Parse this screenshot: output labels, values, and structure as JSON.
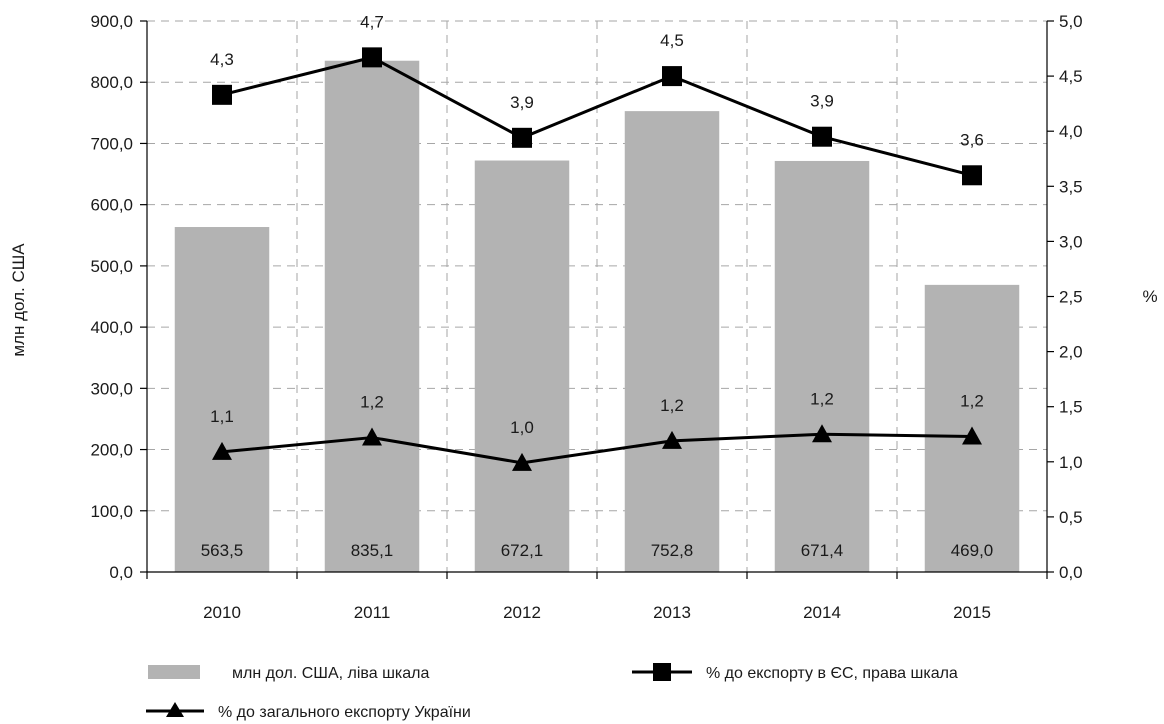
{
  "chart_data": {
    "type": "bar",
    "categories": [
      "2010",
      "2011",
      "2012",
      "2013",
      "2014",
      "2015"
    ],
    "y_left": {
      "label": "млн дол. США",
      "ticks": [
        "0,0",
        "100,0",
        "200,0",
        "300,0",
        "400,0",
        "500,0",
        "600,0",
        "700,0",
        "800,0",
        "900,0"
      ],
      "lim": [
        0,
        900
      ]
    },
    "y_right": {
      "label": "%",
      "ticks": [
        "0,0",
        "0,5",
        "1,0",
        "1,5",
        "2,0",
        "2,5",
        "3,0",
        "3,5",
        "4,0",
        "4,5",
        "5,0"
      ],
      "lim": [
        0,
        5
      ]
    },
    "grid": "dashed",
    "legend_position": "bottom",
    "series": [
      {
        "name": "млн дол. США, ліва шкала",
        "kind": "bar",
        "axis": "left",
        "color": "#b3b3b3",
        "values": [
          563.5,
          835.1,
          672.1,
          752.8,
          671.4,
          469.0
        ],
        "labels": [
          "563,5",
          "835,1",
          "672,1",
          "752,8",
          "671,4",
          "469,0"
        ]
      },
      {
        "name": "% до експорту в ЄС, права шкала",
        "kind": "line",
        "marker": "square",
        "axis": "right",
        "color": "#000000",
        "values": [
          4.33,
          4.67,
          3.94,
          4.5,
          3.95,
          3.6
        ],
        "labels": [
          "4,3",
          "4,7",
          "3,9",
          "4,5",
          "3,9",
          "3,6"
        ]
      },
      {
        "name": "% до загального експорту України",
        "kind": "line",
        "marker": "triangle",
        "axis": "right",
        "color": "#000000",
        "values": [
          1.09,
          1.22,
          0.99,
          1.19,
          1.25,
          1.23
        ],
        "labels": [
          "1,1",
          "1,2",
          "1,0",
          "1,2",
          "1,2",
          "1,2"
        ]
      }
    ]
  }
}
